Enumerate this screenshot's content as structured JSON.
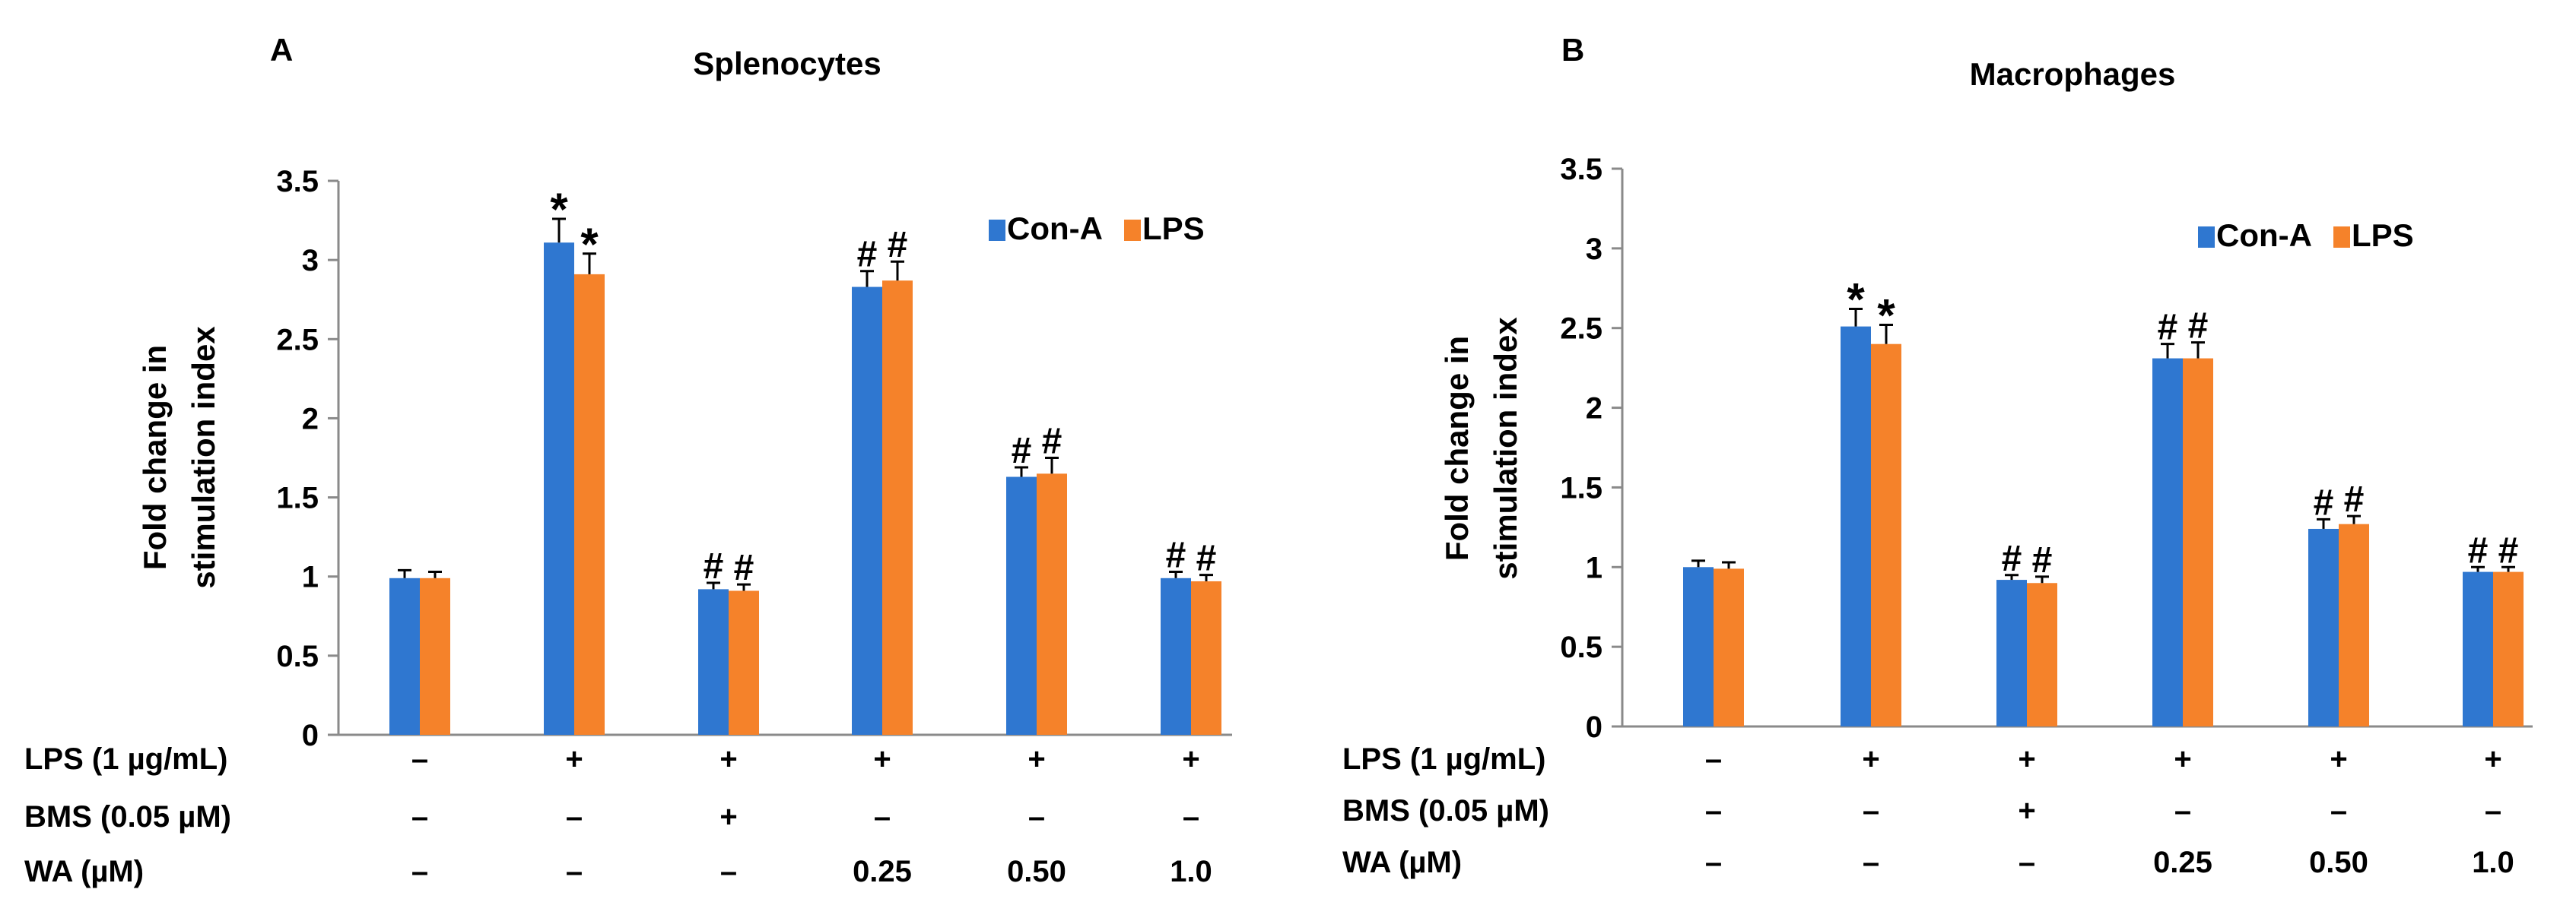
{
  "colors": {
    "con_a": "#2f77d0",
    "lps": "#f5822a",
    "axis": "#8a8a8a",
    "text": "#000000"
  },
  "chart_data": [
    {
      "panel_label": "A",
      "type": "bar",
      "title": "Splenocytes",
      "ylabel": [
        "Fold change in",
        "stimulation index"
      ],
      "ylim": [
        0,
        3.5
      ],
      "yticks": [
        "0",
        "0.5",
        "1",
        "1.5",
        "2",
        "2.5",
        "3",
        "3.5"
      ],
      "legend": [
        "Con-A",
        "LPS"
      ],
      "series": [
        {
          "name": "Con-A",
          "values": [
            0.99,
            3.11,
            0.92,
            2.83,
            1.63,
            0.99
          ],
          "errors": [
            0.05,
            0.15,
            0.04,
            0.1,
            0.06,
            0.04
          ]
        },
        {
          "name": "LPS",
          "values": [
            0.99,
            2.91,
            0.91,
            2.87,
            1.65,
            0.97
          ],
          "errors": [
            0.04,
            0.13,
            0.04,
            0.12,
            0.1,
            0.04
          ]
        }
      ],
      "annotations": {
        "Con-A": [
          "",
          "*",
          "#",
          "#",
          "#",
          "#"
        ],
        "LPS": [
          "",
          "*",
          "#",
          "#",
          "#",
          "#"
        ]
      },
      "conditions": [
        {
          "label": "LPS (1 µg/mL)",
          "values": [
            "–",
            "+",
            "+",
            "+",
            "+",
            "+"
          ]
        },
        {
          "label": "BMS (0.05 µM)",
          "values": [
            "–",
            "–",
            "+",
            "–",
            "–",
            "–"
          ]
        },
        {
          "label": "WA (µM)",
          "values": [
            "–",
            "–",
            "–",
            "0.25",
            "0.50",
            "1.0"
          ]
        }
      ]
    },
    {
      "panel_label": "B",
      "type": "bar",
      "title": "Macrophages",
      "ylabel": [
        "Fold change in",
        "stimulation index"
      ],
      "ylim": [
        0,
        3.5
      ],
      "yticks": [
        "0",
        "0.5",
        "1",
        "1.5",
        "2",
        "2.5",
        "3",
        "3.5"
      ],
      "legend": [
        "Con-A",
        "LPS"
      ],
      "series": [
        {
          "name": "Con-A",
          "values": [
            1.0,
            2.51,
            0.92,
            2.31,
            1.24,
            0.97
          ],
          "errors": [
            0.04,
            0.11,
            0.03,
            0.09,
            0.06,
            0.03
          ]
        },
        {
          "name": "LPS",
          "values": [
            0.99,
            2.4,
            0.9,
            2.31,
            1.27,
            0.97
          ],
          "errors": [
            0.04,
            0.12,
            0.04,
            0.1,
            0.05,
            0.03
          ]
        }
      ],
      "annotations": {
        "Con-A": [
          "",
          "*",
          "#",
          "#",
          "#",
          "#"
        ],
        "LPS": [
          "",
          "*",
          "#",
          "#",
          "#",
          "#"
        ]
      },
      "conditions": [
        {
          "label": "LPS (1 µg/mL)",
          "values": [
            "–",
            "+",
            "+",
            "+",
            "+",
            "+"
          ]
        },
        {
          "label": "BMS (0.05 µM)",
          "values": [
            "–",
            "–",
            "+",
            "–",
            "–",
            "–"
          ]
        },
        {
          "label": "WA (µM)",
          "values": [
            "–",
            "–",
            "–",
            "0.25",
            "0.50",
            "1.0"
          ]
        }
      ]
    }
  ]
}
